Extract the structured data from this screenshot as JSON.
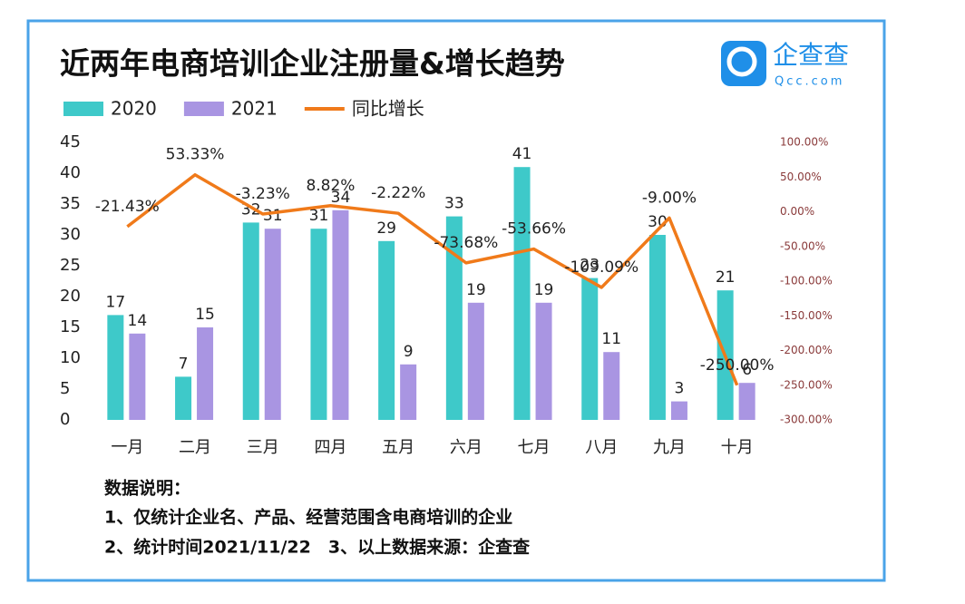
{
  "brand": {
    "name": "企查查",
    "site": "Qcc.com"
  },
  "chart_data": {
    "type": "bar-line",
    "title": "近两年电商培训企业注册量&增长趋势",
    "categories": [
      "一月",
      "二月",
      "三月",
      "四月",
      "五月",
      "六月",
      "七月",
      "八月",
      "九月",
      "十月"
    ],
    "series": [
      {
        "name": "2020",
        "color": "#3ec9c9",
        "values": [
          17,
          7,
          32,
          31,
          29,
          33,
          41,
          23,
          30,
          21
        ]
      },
      {
        "name": "2021",
        "color": "#a995e2",
        "values": [
          14,
          15,
          31,
          34,
          9,
          19,
          19,
          11,
          3,
          6
        ]
      },
      {
        "name": "同比增长",
        "color": "#f07a1a",
        "axis": "y2",
        "type": "line",
        "values": [
          -21.43,
          53.33,
          -3.23,
          8.82,
          -2.22,
          -73.68,
          -53.66,
          -109.09,
          -9.0,
          -250.0
        ],
        "value_labels": [
          "-21.43%",
          "53.33%",
          "-3.23%",
          "8.82%",
          "-2.22%",
          "-73.68%",
          "-53.66%",
          "-109.09%",
          "-9.00%",
          "-250.00%"
        ]
      }
    ],
    "ylim": [
      0,
      45
    ],
    "yticks": [
      0,
      5,
      10,
      15,
      20,
      25,
      30,
      35,
      40,
      45
    ],
    "y2lim": [
      -300,
      100
    ],
    "y2ticks": [
      {
        "value": 100,
        "label": "100.00%"
      },
      {
        "value": 50,
        "label": "50.00%"
      },
      {
        "value": 0,
        "label": "0.00%"
      },
      {
        "value": -50,
        "label": "-50.00%"
      },
      {
        "value": -100,
        "label": "-100.00%"
      },
      {
        "value": -150,
        "label": "-150.00%"
      },
      {
        "value": -200,
        "label": "-200.00%"
      },
      {
        "value": -250,
        "label": "-250.00%"
      },
      {
        "value": -300,
        "label": "-300.00%"
      }
    ],
    "grid": false,
    "annotations": [
      "数据说明：",
      "1、仅统计企业名、产品、经营范围含电商培训的企业",
      "2、统计时间2021/11/22　3、以上数据来源：企查查"
    ]
  }
}
